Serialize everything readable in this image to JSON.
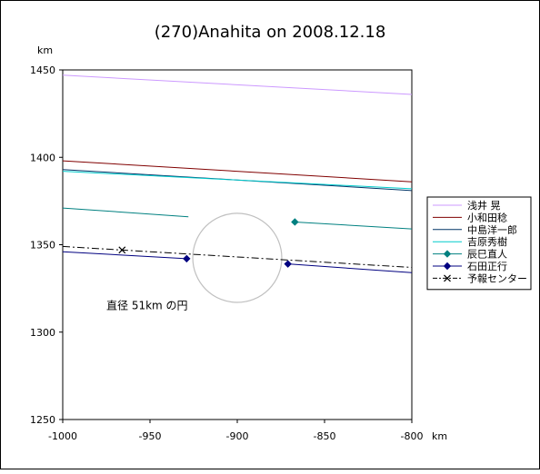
{
  "chart_data": {
    "type": "line",
    "title": "(270)Anahita on 2008.12.18",
    "xunit": "km",
    "yunit": "km",
    "xlim": [
      -1000,
      -800
    ],
    "ylim": [
      1250,
      1450
    ],
    "xticks": [
      -1000,
      -950,
      -900,
      -850,
      -800
    ],
    "yticks": [
      1250,
      1300,
      1350,
      1400,
      1450
    ],
    "grid": false,
    "legend_position": "right",
    "series": [
      {
        "name": "浅井 晃",
        "color": "#cc99ff",
        "marker": "none",
        "dash": "solid",
        "x": [
          -1000,
          -800
        ],
        "y": [
          1447,
          1436
        ]
      },
      {
        "name": "小和田稔",
        "color": "#800000",
        "marker": "none",
        "dash": "solid",
        "x": [
          -1000,
          -800
        ],
        "y": [
          1398,
          1386
        ]
      },
      {
        "name": "中島洋一郎",
        "color": "#003366",
        "marker": "none",
        "dash": "solid",
        "x": [
          -1000,
          -800
        ],
        "y": [
          1393,
          1381
        ]
      },
      {
        "name": "吉原秀樹",
        "color": "#00cccc",
        "marker": "none",
        "dash": "solid",
        "x": [
          -1000,
          -800
        ],
        "y": [
          1392,
          1382
        ]
      },
      {
        "name": "辰巳直人",
        "color": "#008080",
        "marker": "diamond",
        "dash": "solid",
        "segments": [
          {
            "x": [
              -1000,
              -928
            ],
            "y": [
              1371,
              1366
            ]
          },
          {
            "x": [
              -867,
              -800
            ],
            "y": [
              1363,
              1359
            ]
          }
        ],
        "markers": {
          "x": [
            -867
          ],
          "y": [
            1363
          ]
        }
      },
      {
        "name": "石田正行",
        "color": "#000080",
        "marker": "diamond",
        "dash": "solid",
        "segments": [
          {
            "x": [
              -1000,
              -929
            ],
            "y": [
              1346,
              1342
            ]
          },
          {
            "x": [
              -871,
              -800
            ],
            "y": [
              1339,
              1334
            ]
          }
        ],
        "markers": {
          "x": [
            -929,
            -871
          ],
          "y": [
            1342,
            1339
          ]
        }
      },
      {
        "name": "予報センター",
        "color": "#000000",
        "marker": "x",
        "dash": "dashdot",
        "x": [
          -1000,
          -800
        ],
        "y": [
          1349,
          1337
        ],
        "markers": {
          "x": [
            -966
          ],
          "y": [
            1347
          ]
        }
      }
    ],
    "circle": {
      "cx": -900,
      "cy": 1342.5,
      "r": 25.5,
      "color": "#c0c0c0"
    },
    "annotations": [
      {
        "text": "直径 51km の円",
        "x": -975,
        "y": 1313
      }
    ]
  }
}
